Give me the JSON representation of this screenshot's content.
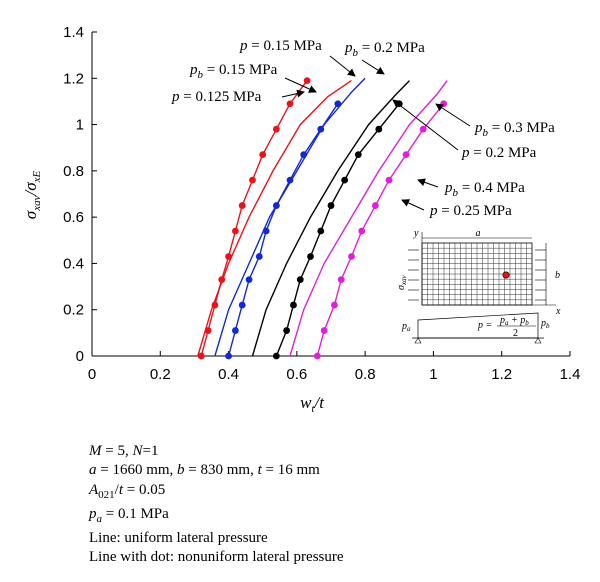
{
  "chart_data": {
    "type": "line",
    "xlabel": "w_t/t",
    "ylabel": "σ_xav/σ_xE",
    "xlim": [
      0,
      1.4
    ],
    "ylim": [
      0,
      1.4
    ],
    "x_ticks": [
      "0",
      "0.2",
      "0.4",
      "0.6",
      "0.8",
      "1",
      "1.2",
      "1.4"
    ],
    "y_ticks": [
      "0",
      "0.2",
      "0.4",
      "0.6",
      "0.8",
      "1",
      "1.2",
      "1.4"
    ],
    "grid": false,
    "series": [
      {
        "name": "p = 0.125 MPa",
        "color": "#e8141c",
        "style": "line",
        "x": [
          0.31,
          0.35,
          0.4,
          0.46,
          0.53,
          0.61,
          0.69,
          0.76
        ],
        "y": [
          0,
          0.2,
          0.4,
          0.6,
          0.8,
          1.0,
          1.12,
          1.19
        ]
      },
      {
        "name": "p_b = 0.15 MPa",
        "color": "#e8141c",
        "style": "line-dot",
        "x": [
          0.32,
          0.34,
          0.36,
          0.38,
          0.4,
          0.42,
          0.44,
          0.47,
          0.5,
          0.54,
          0.58,
          0.63,
          0.69,
          0.75
        ],
        "y": [
          0,
          0.11,
          0.22,
          0.33,
          0.43,
          0.54,
          0.65,
          0.76,
          0.87,
          0.98,
          1.09,
          1.19,
          1.19,
          1.19
        ]
      },
      {
        "name": "p = 0.15 MPa",
        "color": "#1428d2",
        "style": "line",
        "x": [
          0.36,
          0.4,
          0.46,
          0.52,
          0.6,
          0.68,
          0.76,
          0.8
        ],
        "y": [
          0,
          0.2,
          0.4,
          0.6,
          0.8,
          1.0,
          1.14,
          1.2
        ]
      },
      {
        "name": "p_b = 0.2 MPa",
        "color": "#1428d2",
        "style": "line-dot",
        "x": [
          0.4,
          0.42,
          0.44,
          0.46,
          0.49,
          0.51,
          0.54,
          0.58,
          0.62,
          0.67,
          0.72,
          0.79,
          0.87
        ],
        "y": [
          0,
          0.11,
          0.22,
          0.33,
          0.43,
          0.54,
          0.65,
          0.76,
          0.87,
          0.98,
          1.09,
          1.19,
          1.19
        ]
      },
      {
        "name": "p = 0.2 MPa",
        "color": "#000000",
        "style": "line",
        "x": [
          0.47,
          0.51,
          0.57,
          0.64,
          0.72,
          0.81,
          0.89,
          0.93
        ],
        "y": [
          0,
          0.2,
          0.4,
          0.6,
          0.8,
          1.0,
          1.13,
          1.19
        ]
      },
      {
        "name": "p_b = 0.3 MPa",
        "color": "#000000",
        "style": "line-dot",
        "x": [
          0.54,
          0.57,
          0.59,
          0.61,
          0.64,
          0.67,
          0.7,
          0.74,
          0.78,
          0.84,
          0.9,
          0.97,
          1.04
        ],
        "y": [
          0,
          0.11,
          0.22,
          0.33,
          0.43,
          0.54,
          0.65,
          0.76,
          0.87,
          0.98,
          1.09,
          1.19,
          1.19
        ]
      },
      {
        "name": "p = 0.25 MPa",
        "color": "#e020d8",
        "style": "line",
        "x": [
          0.58,
          0.62,
          0.68,
          0.76,
          0.84,
          0.93,
          1.01,
          1.04
        ],
        "y": [
          0,
          0.2,
          0.4,
          0.6,
          0.8,
          1.0,
          1.13,
          1.19
        ]
      },
      {
        "name": "p_b = 0.4 MPa",
        "color": "#e020d8",
        "style": "line-dot",
        "x": [
          0.66,
          0.68,
          0.71,
          0.73,
          0.76,
          0.79,
          0.83,
          0.87,
          0.92,
          0.97,
          1.03,
          1.09,
          1.16
        ],
        "y": [
          0,
          0.11,
          0.22,
          0.33,
          0.43,
          0.54,
          0.65,
          0.76,
          0.87,
          0.98,
          1.09,
          1.19,
          1.19
        ]
      }
    ],
    "annotations": {
      "p_015": "p = 0.15 MPa",
      "pb_02": "p_b = 0.2 MPa",
      "pb_015": "p_b = 0.15 MPa",
      "p_0125": "p = 0.125 MPa",
      "pb_03": "p_b = 0.3 MPa",
      "p_02": "p = 0.2 MPa",
      "pb_04": "p_b = 0.4 MPa",
      "p_025": "p = 0.25 MPa"
    },
    "inset": {
      "a": "a",
      "b": "b",
      "x": "x",
      "y": "y",
      "sigma": "σ_xav",
      "pa": "p_a",
      "pb": "p_b",
      "p_formula": "p = (p_a + p_b) / 2"
    }
  },
  "notes": [
    "M = 5, N=1",
    "a = 1660 mm, b = 830 mm, t = 16 mm",
    "A_021/t = 0.05",
    "p_a = 0.1 MPa",
    "Line: uniform lateral pressure",
    "Line with dot: nonuniform lateral pressure"
  ]
}
